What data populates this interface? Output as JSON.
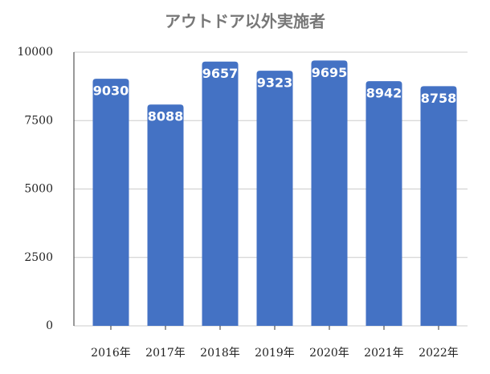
{
  "chart_data": {
    "type": "bar",
    "title": "アウトドア以外実施者",
    "categories": [
      "2016年",
      "2017年",
      "2018年",
      "2019年",
      "2020年",
      "2021年",
      "2022年"
    ],
    "values": [
      9030,
      8088,
      9657,
      9323,
      9695,
      8942,
      8758
    ],
    "color": "#4472c4",
    "ylim": [
      0,
      10000
    ],
    "yticks": [
      0,
      2500,
      5000,
      7500,
      10000
    ],
    "grid": true
  }
}
